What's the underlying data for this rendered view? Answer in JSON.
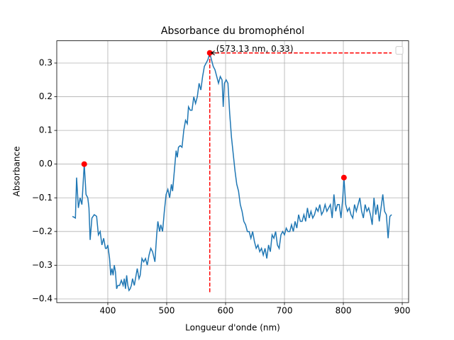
{
  "chart_data": {
    "type": "line",
    "title": "Absorbance du bromophénol",
    "xlabel": "Longueur d'onde (nm)",
    "ylabel": "Absorbance",
    "xlim": [
      313.3,
      910.8
    ],
    "ylim": [
      -0.411,
      0.366
    ],
    "xticks": [
      400,
      500,
      600,
      700,
      800,
      900
    ],
    "yticks": [
      {
        "value": -0.4,
        "label": "−0.4"
      },
      {
        "value": -0.3,
        "label": "−0.3"
      },
      {
        "value": -0.2,
        "label": "−0.2"
      },
      {
        "value": -0.1,
        "label": "−0.1"
      },
      {
        "value": 0,
        "label": "0.0"
      },
      0.1,
      0.2,
      0.3
    ],
    "grid": true,
    "annotation": {
      "text": "(573.13 nm, 0.33)",
      "color": "#ff0000",
      "x": 573.13,
      "y": 0.33
    },
    "series": [
      {
        "color": "#1f77b4",
        "style": "line",
        "x": [
          340,
          345,
          347,
          350,
          353,
          356,
          360,
          363,
          366,
          368,
          370,
          373,
          377,
          381,
          384,
          387,
          390,
          393,
          396,
          398,
          400,
          403,
          405,
          407,
          409,
          411,
          413,
          415,
          417,
          420,
          423,
          426,
          428,
          430,
          432,
          434,
          436,
          438,
          440,
          442,
          445,
          448,
          450,
          453,
          455,
          458,
          461,
          464,
          467,
          470,
          473,
          476,
          480,
          483,
          485,
          488,
          490,
          493,
          496,
          499,
          502,
          505,
          508,
          510,
          513,
          516,
          518,
          520,
          523,
          526,
          529,
          532,
          535,
          537,
          540,
          543,
          546,
          549,
          552,
          555,
          558,
          561,
          564,
          567,
          570,
          573.13,
          576,
          579,
          582,
          585,
          588,
          591,
          594,
          596,
          598,
          601,
          604,
          607,
          610,
          613,
          616,
          619,
          622,
          625,
          628,
          631,
          634,
          637,
          640,
          643,
          646,
          649,
          652,
          655,
          658,
          661,
          664,
          667,
          670,
          673,
          676,
          679,
          682,
          685,
          688,
          691,
          694,
          697,
          700,
          703,
          706,
          709,
          712,
          715,
          718,
          721,
          724,
          727,
          730,
          733,
          736,
          739,
          742,
          745,
          748,
          751,
          754,
          757,
          760,
          763,
          766,
          769,
          772,
          775,
          778,
          781,
          784,
          787,
          790,
          793,
          796,
          799,
          801,
          804,
          807,
          810,
          813,
          816,
          819,
          822,
          825,
          828,
          831,
          834,
          837,
          840,
          843,
          846,
          849,
          852,
          855,
          858,
          861,
          864,
          867,
          870,
          873,
          876,
          879,
          882
        ],
        "values": [
          -0.155,
          -0.16,
          -0.04,
          -0.13,
          -0.1,
          -0.12,
          0.0,
          -0.09,
          -0.1,
          -0.13,
          -0.225,
          -0.16,
          -0.15,
          -0.155,
          -0.21,
          -0.2,
          -0.24,
          -0.22,
          -0.25,
          -0.25,
          -0.24,
          -0.28,
          -0.33,
          -0.31,
          -0.33,
          -0.3,
          -0.32,
          -0.37,
          -0.36,
          -0.36,
          -0.345,
          -0.36,
          -0.34,
          -0.37,
          -0.33,
          -0.36,
          -0.375,
          -0.37,
          -0.36,
          -0.34,
          -0.36,
          -0.33,
          -0.31,
          -0.34,
          -0.33,
          -0.28,
          -0.29,
          -0.28,
          -0.3,
          -0.27,
          -0.25,
          -0.26,
          -0.29,
          -0.21,
          -0.17,
          -0.2,
          -0.18,
          -0.2,
          -0.14,
          -0.09,
          -0.075,
          -0.1,
          -0.06,
          -0.08,
          -0.02,
          0.04,
          0.02,
          0.05,
          0.055,
          0.05,
          0.1,
          0.13,
          0.12,
          0.17,
          0.16,
          0.16,
          0.2,
          0.18,
          0.2,
          0.24,
          0.22,
          0.26,
          0.29,
          0.3,
          0.31,
          0.33,
          0.31,
          0.29,
          0.28,
          0.26,
          0.24,
          0.26,
          0.25,
          0.17,
          0.24,
          0.25,
          0.24,
          0.15,
          0.08,
          0.03,
          -0.02,
          -0.06,
          -0.08,
          -0.12,
          -0.14,
          -0.17,
          -0.18,
          -0.2,
          -0.2,
          -0.22,
          -0.2,
          -0.23,
          -0.25,
          -0.24,
          -0.26,
          -0.25,
          -0.27,
          -0.25,
          -0.28,
          -0.24,
          -0.26,
          -0.21,
          -0.22,
          -0.2,
          -0.24,
          -0.25,
          -0.21,
          -0.2,
          -0.21,
          -0.19,
          -0.2,
          -0.2,
          -0.18,
          -0.2,
          -0.17,
          -0.19,
          -0.15,
          -0.17,
          -0.17,
          -0.15,
          -0.17,
          -0.13,
          -0.16,
          -0.14,
          -0.16,
          -0.15,
          -0.13,
          -0.14,
          -0.12,
          -0.15,
          -0.14,
          -0.12,
          -0.14,
          -0.13,
          -0.12,
          -0.16,
          -0.09,
          -0.14,
          -0.12,
          -0.12,
          -0.16,
          -0.1,
          -0.04,
          -0.12,
          -0.14,
          -0.13,
          -0.15,
          -0.16,
          -0.12,
          -0.14,
          -0.12,
          -0.1,
          -0.14,
          -0.16,
          -0.12,
          -0.14,
          -0.13,
          -0.15,
          -0.18,
          -0.1,
          -0.15,
          -0.12,
          -0.17,
          -0.13,
          -0.09,
          -0.14,
          -0.15,
          -0.22,
          -0.155,
          -0.15
        ]
      },
      {
        "color": "#ff0000",
        "style": "dashed",
        "x": [
          573.13,
          573.13
        ],
        "values": [
          -0.38,
          0.33
        ]
      },
      {
        "color": "#ff0000",
        "style": "dashed",
        "x": [
          573.13,
          882
        ],
        "values": [
          0.33,
          0.33
        ]
      },
      {
        "color": "#ff0000",
        "style": "points",
        "x": [
          360,
          573.13,
          801
        ],
        "values": [
          0.0,
          0.33,
          -0.04
        ]
      }
    ]
  }
}
